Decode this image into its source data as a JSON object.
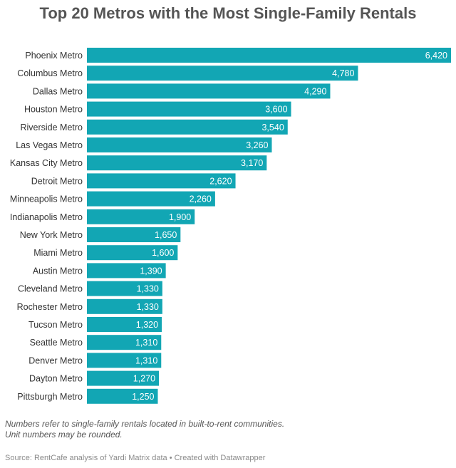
{
  "title": "Top 20 Metros with the Most Single-Family Rentals",
  "notes": [
    "Numbers refer to single-family rentals located in built-to-rent communities.",
    "Unit numbers may be rounded."
  ],
  "source": "Source: RentCafe analysis of Yardi Matrix data • Created with Datawrapper",
  "colors": {
    "bar": "#12a6b4",
    "label_inside": "#ffffff",
    "category_text": "#333333"
  },
  "chart_data": {
    "type": "bar",
    "orientation": "horizontal",
    "title": "Top 20 Metros with the Most Single-Family Rentals",
    "xlabel": "",
    "ylabel": "",
    "grid": false,
    "xlim": [
      0,
      6420
    ],
    "categories": [
      "Phoenix Metro",
      "Columbus Metro",
      "Dallas Metro",
      "Houston Metro",
      "Riverside Metro",
      "Las Vegas Metro",
      "Kansas City Metro",
      "Detroit Metro",
      "Minneapolis Metro",
      "Indianapolis Metro",
      "New York Metro",
      "Miami Metro",
      "Austin Metro",
      "Cleveland Metro",
      "Rochester Metro",
      "Tucson Metro",
      "Seattle Metro",
      "Denver Metro",
      "Dayton Metro",
      "Pittsburgh Metro"
    ],
    "values": [
      6420,
      4780,
      4290,
      3600,
      3540,
      3260,
      3170,
      2620,
      2260,
      1900,
      1650,
      1600,
      1390,
      1330,
      1330,
      1320,
      1310,
      1310,
      1270,
      1250
    ],
    "value_labels": [
      "6,420",
      "4,780",
      "4,290",
      "3,600",
      "3,540",
      "3,260",
      "3,170",
      "2,620",
      "2,260",
      "1,900",
      "1,650",
      "1,600",
      "1,390",
      "1,330",
      "1,330",
      "1,320",
      "1,310",
      "1,310",
      "1,270",
      "1,250"
    ]
  }
}
